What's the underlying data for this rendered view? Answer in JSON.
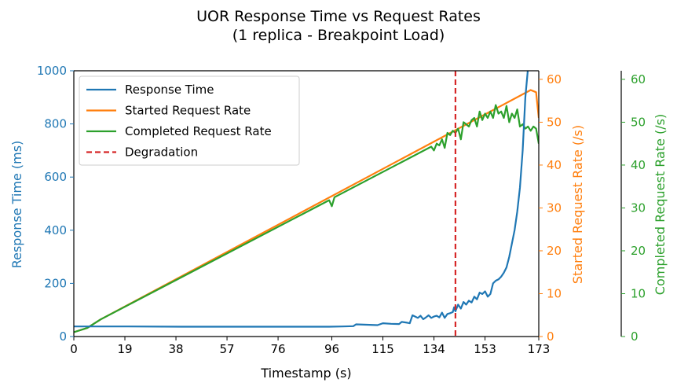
{
  "chart_data": {
    "type": "line",
    "title_line1": "UOR Response Time vs Request Rates",
    "title_line2": "(1 replica  - Breakpoint Load)",
    "xlabel": "Timestamp (s)",
    "ylabel_left": "Response Time (ms)",
    "ylabel_right1": "Started Request Rate (/s)",
    "ylabel_right2": "Completed Request Rate (/s)",
    "xlim": [
      0,
      173
    ],
    "ylim_left": [
      0,
      1000
    ],
    "ylim_right1": [
      0,
      62
    ],
    "ylim_right2": [
      0,
      62
    ],
    "x_ticks": [
      0,
      19,
      38,
      57,
      76,
      96,
      115,
      134,
      153,
      173
    ],
    "y_ticks_left": [
      0,
      200,
      400,
      600,
      800,
      1000
    ],
    "y_ticks_right1": [
      0,
      10,
      20,
      30,
      40,
      50,
      60
    ],
    "y_ticks_right2": [
      0,
      10,
      20,
      30,
      40,
      50,
      60
    ],
    "legend_placement": "upper-left",
    "grid": false,
    "colors": {
      "response": "#1f77b4",
      "started": "#ff7f0e",
      "completed": "#2ca02c",
      "degradation": "#d62728",
      "axis": "#000000"
    },
    "series": [
      {
        "name": "Response Time",
        "axis": "left",
        "color": "#1f77b4",
        "points": [
          [
            0,
            38
          ],
          [
            10,
            38
          ],
          [
            20,
            38
          ],
          [
            40,
            37
          ],
          [
            60,
            37
          ],
          [
            80,
            37
          ],
          [
            95,
            37
          ],
          [
            100,
            38
          ],
          [
            104,
            39
          ],
          [
            105,
            46
          ],
          [
            110,
            44
          ],
          [
            113,
            43
          ],
          [
            115,
            50
          ],
          [
            118,
            48
          ],
          [
            121,
            47
          ],
          [
            122,
            55
          ],
          [
            124,
            52
          ],
          [
            125,
            50
          ],
          [
            126,
            80
          ],
          [
            127,
            75
          ],
          [
            128,
            70
          ],
          [
            129,
            78
          ],
          [
            130,
            65
          ],
          [
            131,
            72
          ],
          [
            132,
            80
          ],
          [
            133,
            70
          ],
          [
            134,
            75
          ],
          [
            135,
            78
          ],
          [
            136,
            72
          ],
          [
            137,
            90
          ],
          [
            138,
            70
          ],
          [
            139,
            85
          ],
          [
            140,
            88
          ],
          [
            141,
            92
          ],
          [
            141.5,
            110
          ],
          [
            142,
            95
          ],
          [
            143,
            120
          ],
          [
            144,
            105
          ],
          [
            145,
            130
          ],
          [
            146,
            120
          ],
          [
            147,
            135
          ],
          [
            148,
            128
          ],
          [
            149,
            150
          ],
          [
            150,
            140
          ],
          [
            151,
            165
          ],
          [
            152,
            160
          ],
          [
            153,
            170
          ],
          [
            154,
            150
          ],
          [
            155,
            160
          ],
          [
            156,
            200
          ],
          [
            157,
            210
          ],
          [
            158,
            215
          ],
          [
            159,
            225
          ],
          [
            160,
            240
          ],
          [
            161,
            260
          ],
          [
            162,
            300
          ],
          [
            163,
            350
          ],
          [
            164,
            400
          ],
          [
            165,
            470
          ],
          [
            166,
            560
          ],
          [
            167,
            700
          ],
          [
            168,
            900
          ],
          [
            169,
            1010
          ]
        ]
      },
      {
        "name": "Started Request Rate",
        "axis": "right1",
        "color": "#ff7f0e",
        "points": [
          [
            0,
            1
          ],
          [
            5,
            2
          ],
          [
            10,
            4
          ],
          [
            170,
            57.5
          ],
          [
            172,
            57
          ],
          [
            173,
            51
          ]
        ]
      },
      {
        "name": "Completed Request Rate",
        "axis": "right2",
        "color": "#2ca02c",
        "points": [
          [
            0,
            1
          ],
          [
            5,
            2
          ],
          [
            10,
            4
          ],
          [
            95,
            31.8
          ],
          [
            96,
            30.4
          ],
          [
            97,
            32.5
          ],
          [
            133,
            44.3
          ],
          [
            134,
            43.4
          ],
          [
            135,
            45
          ],
          [
            136,
            44.6
          ],
          [
            137,
            46
          ],
          [
            138,
            44
          ],
          [
            139,
            47.5
          ],
          [
            140,
            47
          ],
          [
            141,
            48
          ],
          [
            142,
            47.5
          ],
          [
            143,
            48.5
          ],
          [
            144,
            46
          ],
          [
            145,
            50
          ],
          [
            146,
            49.5
          ],
          [
            147,
            49
          ],
          [
            148,
            50.5
          ],
          [
            149,
            51
          ],
          [
            150,
            49
          ],
          [
            151,
            52.5
          ],
          [
            152,
            50.5
          ],
          [
            153,
            52
          ],
          [
            154,
            51
          ],
          [
            155,
            52.5
          ],
          [
            156,
            51
          ],
          [
            157,
            54
          ],
          [
            158,
            52
          ],
          [
            159,
            52.5
          ],
          [
            160,
            51
          ],
          [
            161,
            53.8
          ],
          [
            162,
            50
          ],
          [
            163,
            52
          ],
          [
            164,
            51
          ],
          [
            165,
            53
          ],
          [
            166,
            49
          ],
          [
            167,
            49.5
          ],
          [
            168,
            48.5
          ],
          [
            169,
            49
          ],
          [
            170,
            48
          ],
          [
            171,
            49
          ],
          [
            172,
            48.5
          ],
          [
            173,
            45
          ]
        ]
      },
      {
        "name": "Degradation",
        "axis": "left",
        "color": "#d62728",
        "style": "dashed",
        "x": 142
      }
    ]
  }
}
